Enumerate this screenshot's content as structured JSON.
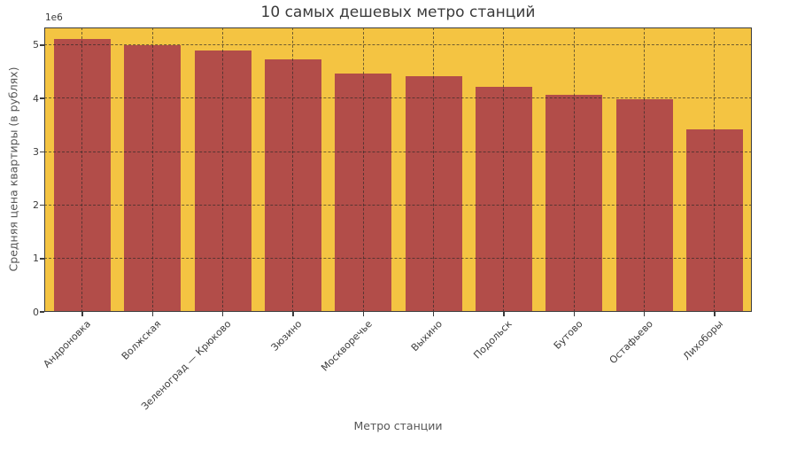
{
  "chart_data": {
    "type": "bar",
    "title": "10 самых дешевых метро станций",
    "xlabel": "Метро станции",
    "ylabel": "Средняя цена квартиры (в рублях)",
    "y_offset_label": "1e6",
    "categories": [
      "Андроновка",
      "Волжская",
      "Зеленоград — Крюково",
      "Зюзино",
      "Москворечье",
      "Выхино",
      "Подольск",
      "Бутово",
      "Остафьево",
      "Лихоборы"
    ],
    "values_millions": [
      5.11,
      5.0,
      4.89,
      4.73,
      4.46,
      4.42,
      4.21,
      4.06,
      3.98,
      3.42
    ],
    "yticks": [
      0,
      1,
      2,
      3,
      4,
      5
    ],
    "ylim": [
      0,
      5.33
    ],
    "grid": "dashed, horizontal and vertical, drawn over bars",
    "legend": "none",
    "colors": {
      "bar": "#B24D49",
      "plot_background": "#F4C442",
      "figure_background": "#ffffff",
      "grid": "#3d3b38",
      "spine": "#3d3d3d",
      "tick_text": "#3d3d3d",
      "axis_label_text": "#565656",
      "title_text": "#3a3a3a"
    }
  }
}
